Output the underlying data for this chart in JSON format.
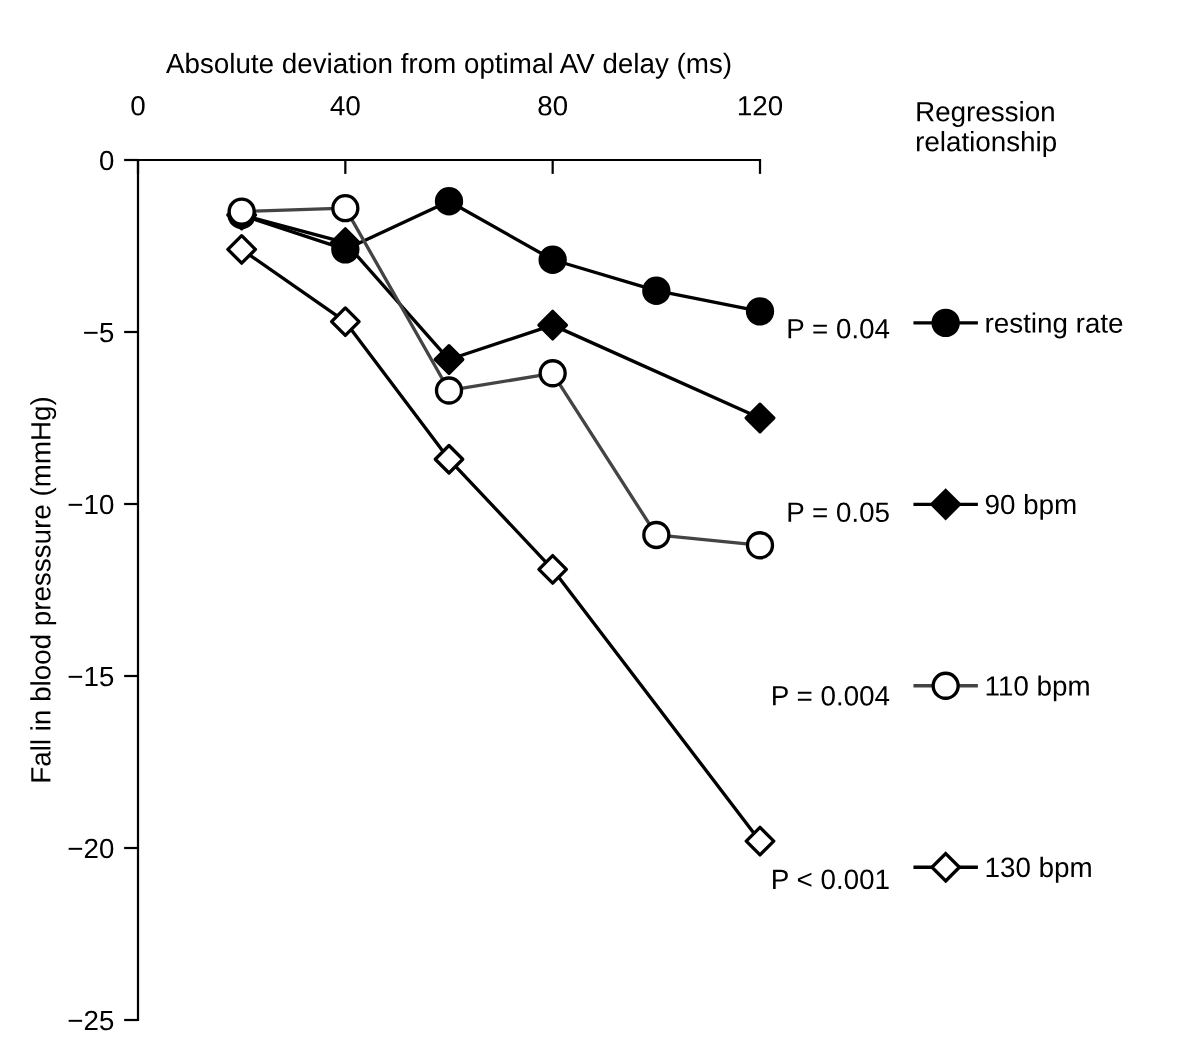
{
  "chart_data": {
    "type": "line",
    "xlabel": "Absolute deviation from optimal AV delay (ms)",
    "ylabel": "Fall in blood presssure (mmHg)",
    "legend_title": "Regression\nrelationship",
    "xlim": [
      0,
      120
    ],
    "xticks": [
      0,
      40,
      80,
      120
    ],
    "ylim": [
      -25,
      0
    ],
    "yticks": [
      -25,
      -20,
      -15,
      -10,
      -5,
      0
    ],
    "grid": false,
    "legend": "right",
    "series": [
      {
        "name": "resting rate",
        "color": "#000000",
        "marker": "circle",
        "colors": [
          "#000000",
          "#000000",
          "#000000",
          "#000000",
          "#000000",
          "#000000"
        ],
        "x": [
          20,
          40,
          60,
          80,
          100,
          120
        ],
        "values": [
          -1.6,
          -2.6,
          -1.2,
          -2.9,
          -3.8,
          -4.4
        ]
      },
      {
        "name": "90 bpm",
        "color": "#000000",
        "marker": "diamond",
        "colors": [
          "#000000",
          "#000000",
          "#000000",
          "#000000",
          "#000000"
        ],
        "x": [
          20,
          40,
          60,
          80,
          120
        ],
        "values": [
          -1.6,
          -2.4,
          -5.8,
          -4.8,
          -7.5
        ]
      },
      {
        "name": "110 bpm",
        "color": "#444444",
        "marker": "circle",
        "colors": [
          "#ffffff",
          "#ffffff",
          "#ffffff",
          "#ffffff",
          "#ffffff",
          "#ffffff"
        ],
        "x": [
          20,
          40,
          60,
          80,
          100,
          120
        ],
        "values": [
          -1.5,
          -1.4,
          -6.7,
          -6.2,
          -10.9,
          -11.2
        ]
      },
      {
        "name": "130 bpm",
        "color": "#000000",
        "marker": "diamond",
        "colors": [
          "#ffffff",
          "#ffffff",
          "#ffffff",
          "#ffffff",
          "#ffffff"
        ],
        "x": [
          20,
          40,
          60,
          80,
          120
        ],
        "values": [
          -2.6,
          -4.7,
          -8.7,
          -11.9,
          -19.8
        ]
      }
    ],
    "annotations": [
      "P = 0.04",
      "P = 0.05",
      "P = 0.004",
      "P < 0.001"
    ]
  }
}
